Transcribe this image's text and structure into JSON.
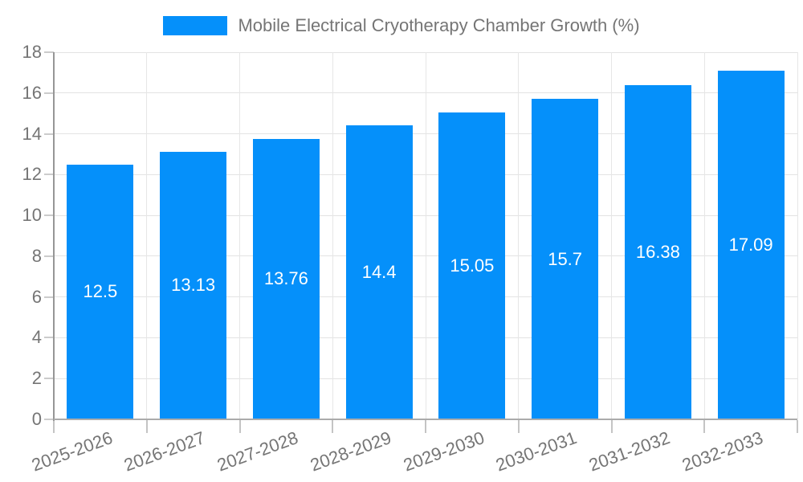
{
  "legend": {
    "label": "Mobile Electrical Cryotherapy Chamber Growth (%)",
    "swatch_color": "#0590FA"
  },
  "chart_data": {
    "type": "bar",
    "title": "Mobile Electrical Cryotherapy Chamber Growth (%)",
    "categories": [
      "2025-2026",
      "2026-2027",
      "2027-2028",
      "2028-2029",
      "2029-2030",
      "2030-2031",
      "2031-2032",
      "2032-2033"
    ],
    "values": [
      12.5,
      13.13,
      13.76,
      14.4,
      15.05,
      15.7,
      16.38,
      17.09
    ],
    "value_labels": [
      "12.5",
      "13.13",
      "13.76",
      "14.4",
      "15.05",
      "15.7",
      "16.38",
      "17.09"
    ],
    "xlabel": "",
    "ylabel": "",
    "ylim": [
      0,
      18
    ],
    "yticks": [
      "0",
      "2",
      "4",
      "6",
      "8",
      "10",
      "12",
      "14",
      "16",
      "18"
    ],
    "grid": true,
    "legend_position": "top",
    "bar_color": "#0590FA",
    "value_label_color": "#ffffff",
    "axis_text_color": "#757575"
  }
}
